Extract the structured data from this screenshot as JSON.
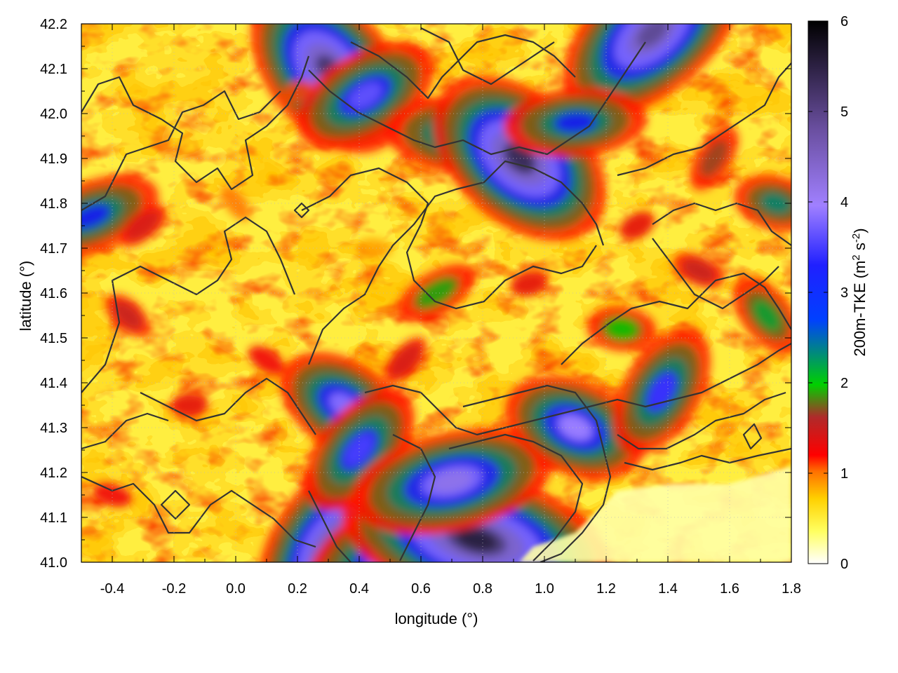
{
  "chart_data": {
    "type": "heatmap",
    "xlabel": "longitude (°)",
    "ylabel": "latitude (°)",
    "colorbar_label": "200m-TKE (m",
    "colorbar_label_sup1": "2",
    "colorbar_label_mid": " s",
    "colorbar_label_sup2": "-2",
    "colorbar_label_end": ")",
    "xlim": [
      -0.5,
      1.8
    ],
    "ylim": [
      41.0,
      42.2
    ],
    "clim": [
      0,
      6
    ],
    "x_ticks": [
      -0.4,
      -0.2,
      0.0,
      0.2,
      0.4,
      0.6,
      0.8,
      1.0,
      1.2,
      1.4,
      1.6,
      1.8
    ],
    "x_tick_labels": [
      "-0.4",
      "-0.2",
      "0.0",
      "0.2",
      "0.4",
      "0.6",
      "0.8",
      "1.0",
      "1.2",
      "1.4",
      "1.6",
      "1.8"
    ],
    "y_ticks": [
      41.0,
      41.1,
      41.2,
      41.3,
      41.4,
      41.5,
      41.6,
      41.7,
      41.8,
      41.9,
      42.0,
      42.1,
      42.2
    ],
    "y_tick_labels": [
      "41.0",
      "41.1",
      "41.2",
      "41.3",
      "41.4",
      "41.5",
      "41.6",
      "41.7",
      "41.8",
      "41.9",
      "42.0",
      "42.1",
      "42.2"
    ],
    "colorbar_ticks": [
      0,
      1,
      2,
      3,
      4,
      5,
      6
    ],
    "colorbar_tick_labels": [
      "0",
      "1",
      "2",
      "3",
      "4",
      "5",
      "6"
    ],
    "colormap": [
      "#ffffff",
      "#ffff00",
      "#ff8000",
      "#ff0000",
      "#c02020",
      "#00cc00",
      "#0000ff",
      "#9c7fe0",
      "#000000"
    ],
    "grid": true,
    "contour_lines": true,
    "hotspots": [
      {
        "lon": 0.33,
        "lat": 41.02,
        "tke": 5.8
      },
      {
        "lon": 0.55,
        "lat": 41.02,
        "tke": 4.8
      },
      {
        "lon": 0.78,
        "lat": 41.05,
        "tke": 5.6
      },
      {
        "lon": 0.3,
        "lat": 42.1,
        "tke": 5.2
      },
      {
        "lon": 0.42,
        "lat": 42.04,
        "tke": 3.6
      },
      {
        "lon": 0.75,
        "lat": 41.95,
        "tke": 3.4
      },
      {
        "lon": 0.92,
        "lat": 41.9,
        "tke": 5.4
      },
      {
        "lon": 1.35,
        "lat": 42.18,
        "tke": 5.0
      },
      {
        "lon": 1.1,
        "lat": 41.98,
        "tke": 3.0
      },
      {
        "lon": 0.35,
        "lat": 41.35,
        "tke": 3.8
      },
      {
        "lon": 0.4,
        "lat": 41.25,
        "tke": 3.4
      },
      {
        "lon": 0.7,
        "lat": 41.18,
        "tke": 4.2
      },
      {
        "lon": 1.1,
        "lat": 41.3,
        "tke": 4.0
      },
      {
        "lon": 1.38,
        "lat": 41.38,
        "tke": 3.3
      },
      {
        "lon": -0.47,
        "lat": 41.77,
        "tke": 3.0
      },
      {
        "lon": 1.75,
        "lat": 41.8,
        "tke": 2.4
      },
      {
        "lon": 1.72,
        "lat": 41.55,
        "tke": 2.2
      },
      {
        "lon": 0.65,
        "lat": 41.6,
        "tke": 1.9
      },
      {
        "lon": 1.25,
        "lat": 41.52,
        "tke": 2.0
      },
      {
        "lon": -0.35,
        "lat": 41.55,
        "tke": 1.4
      },
      {
        "lon": -0.3,
        "lat": 41.75,
        "tke": 1.3
      },
      {
        "lon": -0.15,
        "lat": 41.35,
        "tke": 1.2
      },
      {
        "lon": 0.1,
        "lat": 41.45,
        "tke": 1.1
      },
      {
        "lon": 0.55,
        "lat": 41.45,
        "tke": 1.3
      },
      {
        "lon": 0.95,
        "lat": 41.62,
        "tke": 1.2
      },
      {
        "lon": 1.5,
        "lat": 41.65,
        "tke": 1.4
      },
      {
        "lon": 1.55,
        "lat": 41.9,
        "tke": 1.6
      },
      {
        "lon": 0.2,
        "lat": 42.05,
        "tke": 0.9
      },
      {
        "lon": -0.4,
        "lat": 41.15,
        "tke": 1.1
      },
      {
        "lon": 0.0,
        "lat": 41.8,
        "tke": 0.8
      },
      {
        "lon": 1.3,
        "lat": 41.75,
        "tke": 1.2
      },
      {
        "lon": 0.45,
        "lat": 41.7,
        "tke": 0.7
      }
    ]
  }
}
